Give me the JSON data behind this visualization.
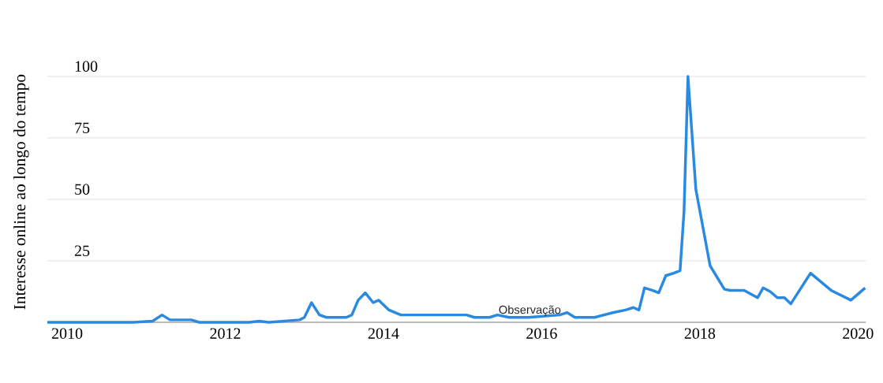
{
  "chart_data": {
    "type": "line",
    "ylabel": "Interesse online ao longo do tempo",
    "x": [
      2009.75,
      2010.83,
      2011.08,
      2011.2,
      2011.3,
      2011.57,
      2011.67,
      2012.3,
      2012.43,
      2012.55,
      2012.94,
      2013.0,
      2013.09,
      2013.19,
      2013.28,
      2013.53,
      2013.6,
      2013.68,
      2013.77,
      2013.87,
      2013.94,
      2014.07,
      2014.22,
      2015.05,
      2015.15,
      2015.34,
      2015.44,
      2015.59,
      2015.83,
      2016.23,
      2016.32,
      2016.42,
      2016.67,
      2016.91,
      2017.06,
      2017.16,
      2017.23,
      2017.3,
      2017.4,
      2017.48,
      2017.57,
      2017.67,
      2017.75,
      2017.8,
      2017.85,
      2017.95,
      2018.13,
      2018.31,
      2018.38,
      2018.56,
      2018.73,
      2018.8,
      2018.89,
      2018.98,
      2019.07,
      2019.15,
      2019.4,
      2019.66,
      2019.91,
      2020.09
    ],
    "values": [
      0,
      0,
      0.5,
      3,
      1,
      1,
      0,
      0,
      0.5,
      0,
      1,
      2,
      8,
      3,
      2,
      2,
      3,
      9,
      12,
      8,
      9,
      5,
      3,
      3,
      2,
      2,
      3,
      2,
      2,
      3,
      4,
      2,
      2,
      4,
      5,
      6,
      5,
      14,
      13,
      12,
      19,
      20,
      21,
      45,
      100,
      54,
      23,
      13.5,
      13,
      13,
      10,
      14,
      12.5,
      10,
      10,
      7.5,
      20,
      13,
      9,
      14
    ],
    "color": "#2a8ae2",
    "xlim": [
      2009.75,
      2020.1
    ],
    "xticks": [
      2010,
      2012,
      2014,
      2016,
      2018,
      2020
    ],
    "ylim": [
      0,
      100
    ],
    "yticks": [
      25,
      50,
      75,
      100
    ],
    "grid": "y",
    "marker": "none",
    "line_style": "solid",
    "annotations": [
      {
        "text": "Observação",
        "x": 2015.85,
        "y": 2
      }
    ]
  }
}
